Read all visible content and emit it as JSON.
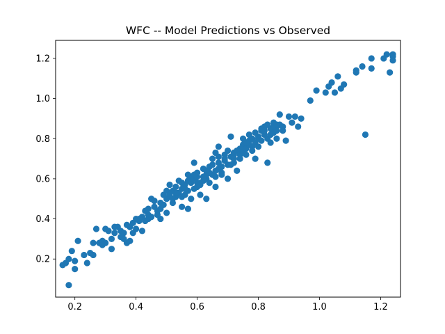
{
  "chart_data": {
    "type": "scatter",
    "title": "WFC -- Model Predictions vs Observed",
    "xlabel": "",
    "ylabel": "",
    "xlim": [
      0.137,
      1.265
    ],
    "ylim": [
      0.01,
      1.29
    ],
    "xticks": [
      0.2,
      0.4,
      0.6,
      0.8,
      1.0,
      1.2
    ],
    "xtick_labels": [
      "0.2",
      "0.4",
      "0.6",
      "0.8",
      "1.0",
      "1.2"
    ],
    "yticks": [
      0.2,
      0.4,
      0.6,
      0.8,
      1.0,
      1.2
    ],
    "ytick_labels": [
      "0.2",
      "0.4",
      "0.6",
      "0.8",
      "1.0",
      "1.2"
    ],
    "grid": false,
    "legend": "none",
    "marker_color": "#1f77b4",
    "series": [
      {
        "points": [
          [
            0.16,
            0.17
          ],
          [
            0.17,
            0.18
          ],
          [
            0.18,
            0.2
          ],
          [
            0.19,
            0.24
          ],
          [
            0.2,
            0.15
          ],
          [
            0.18,
            0.07
          ],
          [
            0.2,
            0.19
          ],
          [
            0.21,
            0.29
          ],
          [
            0.23,
            0.22
          ],
          [
            0.24,
            0.18
          ],
          [
            0.25,
            0.23
          ],
          [
            0.26,
            0.28
          ],
          [
            0.27,
            0.35
          ],
          [
            0.28,
            0.28
          ],
          [
            0.29,
            0.29
          ],
          [
            0.3,
            0.28
          ],
          [
            0.3,
            0.35
          ],
          [
            0.31,
            0.34
          ],
          [
            0.32,
            0.25
          ],
          [
            0.32,
            0.3
          ],
          [
            0.33,
            0.33
          ],
          [
            0.34,
            0.36
          ],
          [
            0.35,
            0.34
          ],
          [
            0.36,
            0.33
          ],
          [
            0.36,
            0.3
          ],
          [
            0.37,
            0.28
          ],
          [
            0.37,
            0.37
          ],
          [
            0.38,
            0.29
          ],
          [
            0.38,
            0.36
          ],
          [
            0.39,
            0.38
          ],
          [
            0.4,
            0.4
          ],
          [
            0.4,
            0.35
          ],
          [
            0.41,
            0.39
          ],
          [
            0.42,
            0.34
          ],
          [
            0.42,
            0.41
          ],
          [
            0.43,
            0.44
          ],
          [
            0.44,
            0.42
          ],
          [
            0.44,
            0.4
          ],
          [
            0.45,
            0.41
          ],
          [
            0.45,
            0.5
          ],
          [
            0.46,
            0.46
          ],
          [
            0.47,
            0.42
          ],
          [
            0.47,
            0.44
          ],
          [
            0.48,
            0.48
          ],
          [
            0.48,
            0.45
          ],
          [
            0.49,
            0.52
          ],
          [
            0.49,
            0.47
          ],
          [
            0.5,
            0.5
          ],
          [
            0.5,
            0.54
          ],
          [
            0.5,
            0.43
          ],
          [
            0.51,
            0.52
          ],
          [
            0.51,
            0.57
          ],
          [
            0.52,
            0.48
          ],
          [
            0.52,
            0.54
          ],
          [
            0.53,
            0.51
          ],
          [
            0.53,
            0.56
          ],
          [
            0.54,
            0.53
          ],
          [
            0.54,
            0.59
          ],
          [
            0.55,
            0.46
          ],
          [
            0.55,
            0.55
          ],
          [
            0.55,
            0.51
          ],
          [
            0.56,
            0.57
          ],
          [
            0.56,
            0.52
          ],
          [
            0.57,
            0.45
          ],
          [
            0.57,
            0.62
          ],
          [
            0.57,
            0.54
          ],
          [
            0.58,
            0.58
          ],
          [
            0.58,
            0.5
          ],
          [
            0.59,
            0.6
          ],
          [
            0.59,
            0.68
          ],
          [
            0.59,
            0.55
          ],
          [
            0.6,
            0.56
          ],
          [
            0.6,
            0.61
          ],
          [
            0.6,
            0.63
          ],
          [
            0.61,
            0.58
          ],
          [
            0.61,
            0.52
          ],
          [
            0.62,
            0.59
          ],
          [
            0.62,
            0.65
          ],
          [
            0.63,
            0.6
          ],
          [
            0.63,
            0.62
          ],
          [
            0.63,
            0.5
          ],
          [
            0.64,
            0.58
          ],
          [
            0.64,
            0.66
          ],
          [
            0.65,
            0.62
          ],
          [
            0.65,
            0.7
          ],
          [
            0.66,
            0.64
          ],
          [
            0.66,
            0.73
          ],
          [
            0.66,
            0.56
          ],
          [
            0.67,
            0.68
          ],
          [
            0.67,
            0.76
          ],
          [
            0.68,
            0.63
          ],
          [
            0.68,
            0.66
          ],
          [
            0.69,
            0.69
          ],
          [
            0.69,
            0.72
          ],
          [
            0.7,
            0.67
          ],
          [
            0.7,
            0.6
          ],
          [
            0.71,
            0.71
          ],
          [
            0.71,
            0.81
          ],
          [
            0.72,
            0.72
          ],
          [
            0.72,
            0.68
          ],
          [
            0.73,
            0.74
          ],
          [
            0.73,
            0.64
          ],
          [
            0.74,
            0.72
          ],
          [
            0.74,
            0.7
          ],
          [
            0.75,
            0.73
          ],
          [
            0.75,
            0.77
          ],
          [
            0.76,
            0.75
          ],
          [
            0.76,
            0.72
          ],
          [
            0.77,
            0.79
          ],
          [
            0.77,
            0.82
          ],
          [
            0.78,
            0.76
          ],
          [
            0.78,
            0.8
          ],
          [
            0.79,
            0.78
          ],
          [
            0.79,
            0.7
          ],
          [
            0.8,
            0.81
          ],
          [
            0.8,
            0.76
          ],
          [
            0.81,
            0.84
          ],
          [
            0.81,
            0.79
          ],
          [
            0.82,
            0.82
          ],
          [
            0.82,
            0.86
          ],
          [
            0.83,
            0.8
          ],
          [
            0.83,
            0.68
          ],
          [
            0.84,
            0.85
          ],
          [
            0.84,
            0.78
          ],
          [
            0.85,
            0.83
          ],
          [
            0.85,
            0.88
          ],
          [
            0.86,
            0.86
          ],
          [
            0.86,
            0.8
          ],
          [
            0.87,
            0.87
          ],
          [
            0.87,
            0.92
          ],
          [
            0.88,
            0.84
          ],
          [
            0.89,
            0.79
          ],
          [
            0.9,
            0.91
          ],
          [
            0.91,
            0.88
          ],
          [
            0.92,
            0.91
          ],
          [
            0.93,
            0.86
          ],
          [
            0.94,
            0.9
          ],
          [
            0.97,
            0.99
          ],
          [
            0.99,
            1.04
          ],
          [
            1.02,
            1.03
          ],
          [
            1.03,
            1.06
          ],
          [
            1.04,
            1.08
          ],
          [
            1.05,
            1.03
          ],
          [
            1.06,
            1.11
          ],
          [
            1.07,
            1.05
          ],
          [
            1.08,
            1.07
          ],
          [
            1.12,
            1.13
          ],
          [
            1.12,
            1.14
          ],
          [
            1.14,
            1.16
          ],
          [
            1.15,
            0.82
          ],
          [
            1.17,
            1.2
          ],
          [
            1.17,
            1.15
          ],
          [
            1.21,
            1.2
          ],
          [
            1.22,
            1.22
          ],
          [
            1.23,
            1.13
          ],
          [
            1.24,
            1.21
          ],
          [
            1.24,
            1.22
          ],
          [
            1.24,
            1.19
          ],
          [
            0.55,
            0.58
          ],
          [
            0.58,
            0.61
          ],
          [
            0.61,
            0.57
          ],
          [
            0.64,
            0.63
          ],
          [
            0.67,
            0.71
          ],
          [
            0.7,
            0.74
          ],
          [
            0.72,
            0.73
          ],
          [
            0.75,
            0.8
          ],
          [
            0.78,
            0.74
          ],
          [
            0.81,
            0.85
          ],
          [
            0.84,
            0.82
          ],
          [
            0.86,
            0.84
          ],
          [
            0.62,
            0.61
          ],
          [
            0.65,
            0.67
          ],
          [
            0.68,
            0.62
          ],
          [
            0.71,
            0.67
          ],
          [
            0.52,
            0.5
          ],
          [
            0.56,
            0.55
          ],
          [
            0.46,
            0.49
          ],
          [
            0.43,
            0.39
          ],
          [
            0.39,
            0.33
          ],
          [
            0.35,
            0.31
          ],
          [
            0.33,
            0.36
          ],
          [
            0.48,
            0.4
          ],
          [
            0.74,
            0.75
          ],
          [
            0.77,
            0.77
          ],
          [
            0.8,
            0.8
          ],
          [
            0.83,
            0.87
          ],
          [
            0.85,
            0.86
          ],
          [
            0.88,
            0.86
          ],
          [
            0.6,
            0.58
          ],
          [
            0.63,
            0.64
          ],
          [
            0.66,
            0.61
          ],
          [
            0.69,
            0.7
          ],
          [
            0.53,
            0.53
          ],
          [
            0.57,
            0.59
          ],
          [
            0.59,
            0.62
          ],
          [
            0.76,
            0.78
          ],
          [
            0.79,
            0.83
          ],
          [
            0.82,
            0.84
          ],
          [
            0.86,
            0.87
          ],
          [
            0.72,
            0.7
          ],
          [
            0.67,
            0.65
          ],
          [
            0.44,
            0.45
          ],
          [
            0.41,
            0.4
          ],
          [
            0.38,
            0.36
          ],
          [
            0.29,
            0.27
          ],
          [
            0.26,
            0.22
          ]
        ]
      }
    ]
  }
}
